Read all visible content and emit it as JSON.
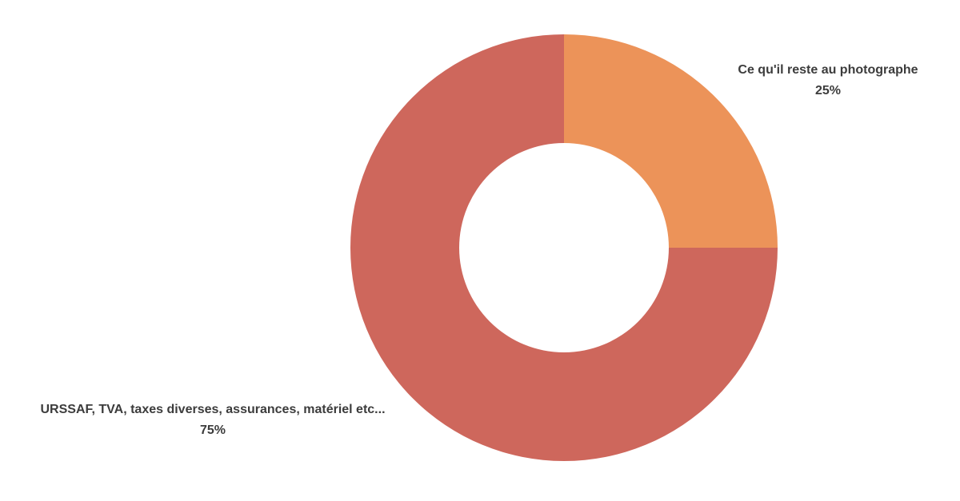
{
  "chart_data": {
    "type": "pie",
    "variant": "donut",
    "start_angle_deg": 0,
    "direction": "clockwise",
    "background": "#FFFFFF",
    "text_color": "#3C3C3C",
    "legend_position": "labels-outside",
    "title": "",
    "slices": [
      {
        "label": "Ce qu'il reste au photographe",
        "pct_label": "25%",
        "value": 25,
        "color": "#EC9359"
      },
      {
        "label": "URSSAF, TVA, taxes diverses, assurances, matériel etc...",
        "pct_label": "75%",
        "value": 75,
        "color": "#CE675C"
      }
    ]
  }
}
